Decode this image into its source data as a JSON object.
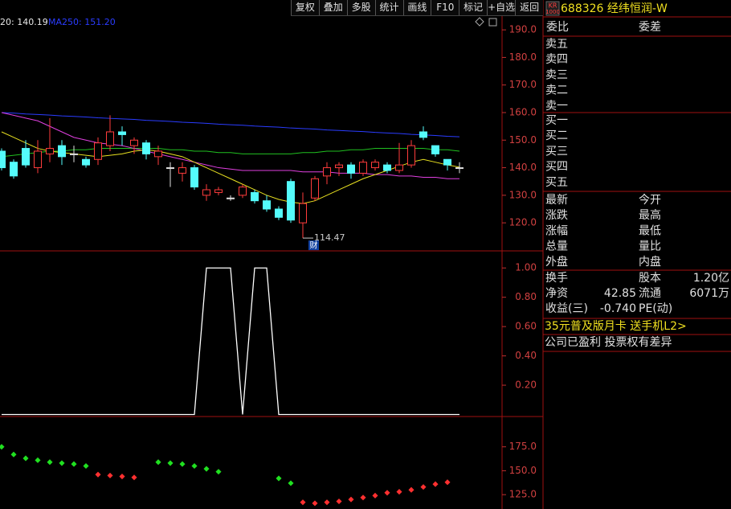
{
  "toolbar": {
    "buttons": [
      "复权",
      "叠加",
      "多股",
      "统计",
      "画线",
      "F10",
      "标记",
      "+自选",
      "返回"
    ]
  },
  "price_chart": {
    "legend": [
      {
        "text": "20: 140.19",
        "color": "#e8e8e8"
      },
      {
        "text": "MA250: 151.20",
        "color": "#2a3cff"
      }
    ],
    "ylim": [
      110,
      195
    ],
    "yticks": [
      {
        "value": 120,
        "label": "120.0"
      },
      {
        "value": 130,
        "label": "130.0"
      },
      {
        "value": 140,
        "label": "140.0"
      },
      {
        "value": 150,
        "label": "150.0"
      },
      {
        "value": 160,
        "label": "160.0"
      },
      {
        "value": 170,
        "label": "170.0"
      },
      {
        "value": 180,
        "label": "180.0"
      },
      {
        "value": 190,
        "label": "190.0"
      }
    ],
    "candles": [
      [
        146,
        147,
        139,
        140
      ],
      [
        142,
        143,
        136,
        137
      ],
      [
        147,
        150,
        140,
        141
      ],
      [
        140,
        150,
        138,
        146
      ],
      [
        145,
        158,
        142,
        147
      ],
      [
        148,
        150,
        141,
        144
      ],
      [
        145,
        148,
        142,
        145
      ],
      [
        143,
        144,
        140,
        141
      ],
      [
        143,
        151,
        141,
        149
      ],
      [
        148,
        159,
        146,
        153
      ],
      [
        153,
        155,
        148,
        152
      ],
      [
        148,
        151,
        145,
        150
      ],
      [
        149,
        150,
        143,
        145
      ],
      [
        144,
        148,
        141,
        146
      ],
      [
        140,
        142,
        133,
        140
      ],
      [
        138,
        142,
        135,
        140
      ],
      [
        140,
        141,
        132,
        133
      ],
      [
        130,
        134,
        128,
        132
      ],
      [
        131,
        133,
        130,
        132
      ],
      [
        129,
        130,
        128,
        129
      ],
      [
        130,
        134,
        129,
        133
      ],
      [
        131,
        132,
        127,
        128
      ],
      [
        128,
        130,
        124,
        125
      ],
      [
        125,
        126,
        121,
        122
      ],
      [
        135,
        136,
        120,
        121
      ],
      [
        120,
        131,
        114.47,
        127
      ],
      [
        129,
        137,
        128,
        136
      ],
      [
        137,
        142,
        134,
        140
      ],
      [
        140,
        142,
        137,
        141
      ],
      [
        141,
        142,
        136,
        138
      ],
      [
        138,
        143,
        137,
        142
      ],
      [
        140,
        143,
        139,
        142
      ],
      [
        141,
        142,
        138,
        139
      ],
      [
        139,
        149,
        138,
        141
      ],
      [
        141,
        150,
        140,
        148
      ],
      [
        153,
        155,
        150,
        151
      ],
      [
        148,
        148,
        144,
        145
      ],
      [
        143,
        143,
        139,
        141
      ],
      [
        140,
        142,
        138,
        140
      ]
    ],
    "ma": [
      {
        "color": "#2a3cff",
        "values": [
          160.0,
          159.8,
          159.5,
          159.3,
          159.1,
          158.8,
          158.6,
          158.4,
          158.1,
          157.9,
          157.7,
          157.5,
          157.2,
          157.0,
          156.8,
          156.5,
          156.3,
          156.1,
          155.8,
          155.6,
          155.4,
          155.1,
          154.9,
          154.7,
          154.4,
          154.2,
          154.0,
          153.7,
          153.5,
          153.3,
          153.1,
          152.8,
          152.6,
          152.4,
          152.1,
          151.9,
          151.7,
          151.4,
          151.2
        ]
      },
      {
        "color": "#20c020",
        "values": [
          144,
          144.5,
          145,
          145.5,
          146,
          146,
          146.5,
          146.5,
          147,
          147,
          147,
          147,
          147,
          147,
          146.5,
          146.5,
          146,
          146,
          145.5,
          145.5,
          145,
          145,
          145,
          145,
          145,
          145.5,
          145.5,
          146,
          146,
          146.5,
          146.5,
          147,
          147,
          147,
          147,
          147,
          146.5,
          146.5,
          146
        ]
      },
      {
        "color": "#e040e0",
        "values": [
          160,
          159,
          158,
          157,
          155,
          153,
          151,
          150,
          149,
          148.5,
          148,
          147,
          146,
          145,
          144,
          143,
          142,
          141,
          140,
          139.5,
          139,
          139,
          139,
          139,
          139,
          138.5,
          138.5,
          138.5,
          138,
          138,
          138,
          137.5,
          137.5,
          137,
          137,
          136.5,
          136.5,
          136,
          136
        ]
      },
      {
        "color": "#e8e020",
        "values": [
          153,
          151,
          149,
          147,
          146,
          145.5,
          145,
          144.5,
          144,
          144.5,
          145,
          146,
          146.5,
          146,
          145,
          144,
          142,
          140,
          138,
          136,
          134,
          132,
          130,
          128.5,
          127.5,
          127,
          128,
          130,
          132,
          134,
          136,
          137.5,
          139,
          140.5,
          142,
          143,
          142,
          141,
          140.19
        ]
      }
    ],
    "low_badge": "财"
  },
  "indicator": {
    "ylim": [
      0,
      1.1
    ],
    "yticks": [
      {
        "value": 0.2,
        "label": "0.20"
      },
      {
        "value": 0.4,
        "label": "0.40"
      },
      {
        "value": 0.6,
        "label": "0.60"
      },
      {
        "value": 0.8,
        "label": "0.80"
      },
      {
        "value": 1,
        "label": "1.00"
      }
    ],
    "color": "#ffffff",
    "values": [
      0,
      0,
      0,
      0,
      0,
      0,
      0,
      0,
      0,
      0,
      0,
      0,
      0,
      0,
      0,
      0,
      0,
      1,
      1,
      1,
      0,
      1,
      1,
      0,
      0,
      0,
      0,
      0,
      0,
      0,
      0,
      0,
      0,
      0,
      0,
      0,
      0,
      0,
      0
    ]
  },
  "sar": {
    "ylim": [
      110,
      205
    ],
    "yticks": [
      {
        "value": 125,
        "label": "125.0"
      },
      {
        "value": 150,
        "label": "150.0"
      },
      {
        "value": 175,
        "label": "175.0"
      }
    ],
    "series": [
      {
        "color": "#20e020",
        "values": [
          175,
          167,
          163,
          161,
          159,
          158,
          157,
          155,
          null,
          null,
          null,
          null,
          null,
          159,
          158,
          157,
          155,
          152,
          149,
          null,
          null,
          null,
          null,
          142,
          137,
          null,
          null,
          null,
          null,
          null,
          null,
          null,
          null,
          null,
          null,
          null,
          null,
          null,
          null
        ]
      },
      {
        "color": "#ff3030",
        "values": [
          null,
          null,
          null,
          null,
          null,
          null,
          null,
          null,
          146,
          145,
          144,
          143,
          null,
          null,
          null,
          null,
          null,
          null,
          null,
          null,
          null,
          null,
          null,
          null,
          null,
          117,
          116,
          117,
          118,
          120,
          122,
          124,
          127,
          128,
          130,
          133,
          136,
          138,
          null
        ]
      }
    ]
  },
  "quote": {
    "badge": [
      "KR",
      "1000"
    ],
    "title": "688326 经纬恒润-W",
    "order_row": [
      "委比",
      "委差"
    ],
    "asks": [
      "卖五",
      "卖四",
      "卖三",
      "卖二",
      "卖一"
    ],
    "bids": [
      "买一",
      "买二",
      "买三",
      "买四",
      "买五"
    ],
    "stats": [
      [
        "最新",
        "今开"
      ],
      [
        "涨跌",
        "最高"
      ],
      [
        "涨幅",
        "最低"
      ],
      [
        "总量",
        "量比"
      ],
      [
        "外盘",
        "内盘"
      ]
    ],
    "fundamentals": [
      [
        {
          "label": "换手"
        },
        {
          "label": "股本",
          "value": "1.20亿"
        }
      ],
      [
        {
          "label": "净资",
          "value": "42.85"
        },
        {
          "label": "流通",
          "value": "6071万"
        }
      ],
      [
        {
          "label": "收益(三)",
          "value": "-0.740"
        },
        {
          "label": "PE(动)"
        }
      ]
    ],
    "promo": "35元普及版月卡 送手机L2>",
    "notice": "公司已盈利 投票权有差异"
  }
}
